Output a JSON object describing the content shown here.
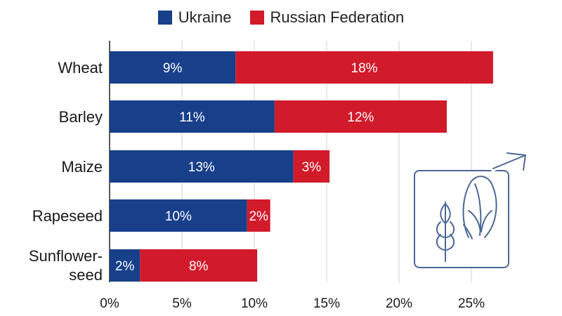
{
  "chart_data": {
    "type": "bar",
    "orientation": "horizontal",
    "stacked": true,
    "categories": [
      {
        "lines": [
          "Wheat"
        ]
      },
      {
        "lines": [
          "Barley"
        ]
      },
      {
        "lines": [
          "Maize"
        ]
      },
      {
        "lines": [
          "Rapeseed"
        ]
      },
      {
        "lines": [
          "Sunflower-",
          "seed"
        ]
      }
    ],
    "series": [
      {
        "name": "Ukraine",
        "color": "#173f8a",
        "values": [
          8.7,
          11.4,
          12.7,
          9.5,
          2.1
        ],
        "labels": [
          "9%",
          "11%",
          "13%",
          "10%",
          "2%"
        ]
      },
      {
        "name": "Russian Federation",
        "color": "#d11a2a",
        "values": [
          17.8,
          11.9,
          2.5,
          1.6,
          8.1
        ],
        "labels": [
          "18%",
          "12%",
          "3%",
          "2%",
          "8%"
        ]
      }
    ],
    "xlim": [
      0,
      30
    ],
    "xticks": [
      0,
      5,
      10,
      15,
      20,
      25
    ],
    "xtick_labels": [
      "0%",
      "5%",
      "10%",
      "15%",
      "20%",
      "25%"
    ],
    "grid": true,
    "legend_position": "top-center",
    "decoration": "wheat-and-corn-growth-icon"
  }
}
